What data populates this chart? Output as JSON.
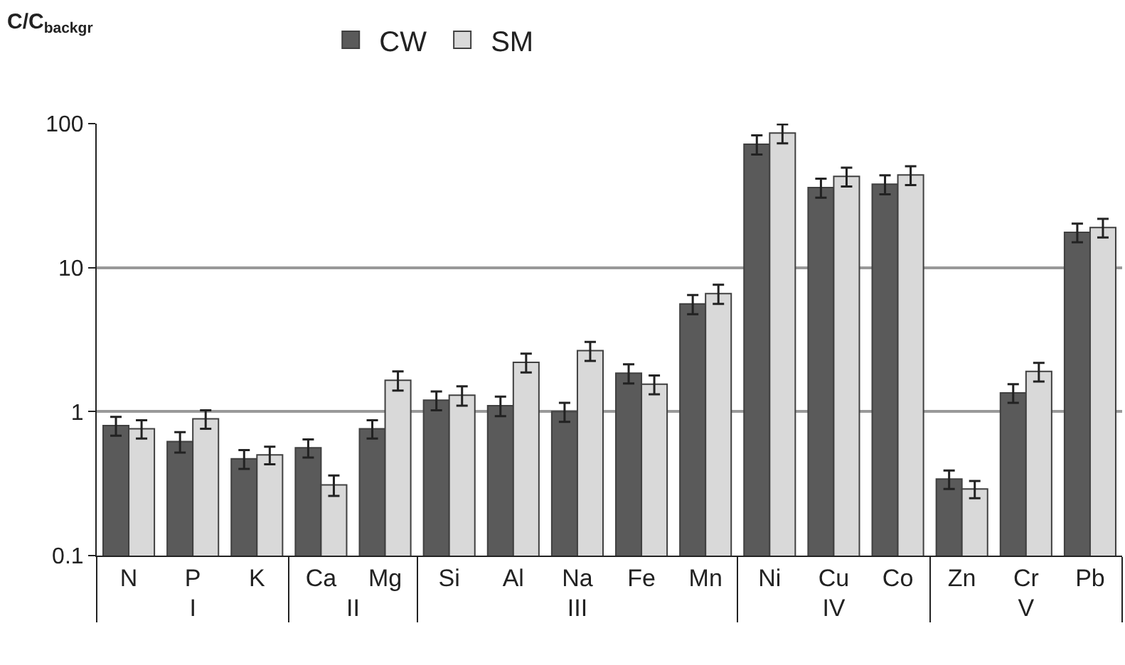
{
  "chart_data": {
    "type": "bar",
    "ylabel": "C/C$_{backgr}$",
    "categories": [
      "N",
      "P",
      "K",
      "Ca",
      "Mg",
      "Si",
      "Al",
      "Na",
      "Fe",
      "Mn",
      "Ni",
      "Cu",
      "Co",
      "Zn",
      "Cr",
      "Pb"
    ],
    "series": [
      {
        "name": "CW",
        "color": "#5a5a5a",
        "values": [
          0.8,
          0.62,
          0.47,
          0.56,
          0.76,
          1.2,
          1.1,
          1.0,
          1.85,
          5.6,
          72,
          36,
          38,
          0.34,
          1.35,
          17.6
        ],
        "errors": [
          0.12,
          0.1,
          0.07,
          0.08,
          0.11,
          0.18,
          0.17,
          0.15,
          0.28,
          0.85,
          11,
          5.4,
          5.7,
          0.05,
          0.2,
          2.6
        ]
      },
      {
        "name": "SM",
        "color": "#d9d9d9",
        "values": [
          0.76,
          0.89,
          0.5,
          0.31,
          1.65,
          1.3,
          2.2,
          2.65,
          1.55,
          6.6,
          86,
          43,
          44,
          0.29,
          1.9,
          19
        ],
        "errors": [
          0.11,
          0.13,
          0.07,
          0.05,
          0.25,
          0.2,
          0.33,
          0.4,
          0.23,
          1.0,
          13,
          6.4,
          6.6,
          0.04,
          0.28,
          2.8
        ]
      }
    ],
    "annotations": [
      "I",
      "II",
      "III",
      "IV",
      "V"
    ],
    "log": true,
    "ylim": [
      0.1,
      100
    ],
    "yticks": [
      0.1,
      1,
      10,
      100
    ],
    "grid": "y",
    "legend": "top"
  }
}
